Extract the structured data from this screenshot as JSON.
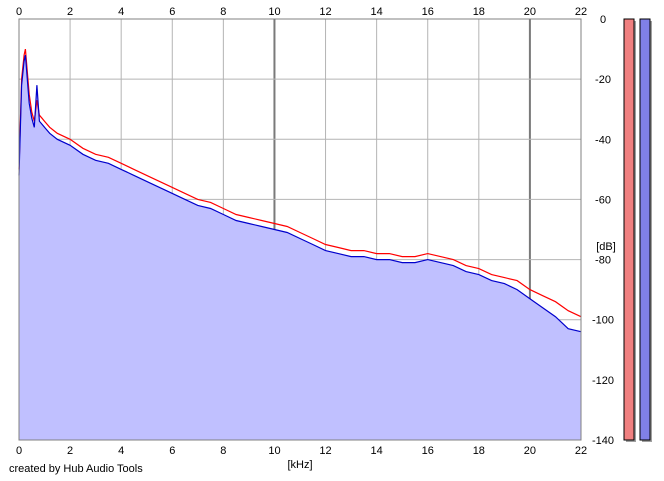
{
  "footer": {
    "credit": "created by Hub Audio Tools"
  },
  "chart_data": {
    "type": "line",
    "title": "",
    "xlabel": "[kHz]",
    "ylabel": "[dB]",
    "xlim": [
      0,
      22
    ],
    "ylim": [
      -140,
      0
    ],
    "x_ticks": [
      0,
      2,
      4,
      6,
      8,
      10,
      12,
      14,
      16,
      18,
      20,
      22
    ],
    "x_tick_labels": [
      "0",
      "2",
      "4",
      "6",
      "8",
      "10",
      "12",
      "14",
      "16",
      "18",
      "20",
      "22"
    ],
    "y_ticks": [
      0,
      -20,
      -40,
      -60,
      -80,
      -100,
      -120,
      -140
    ],
    "y_tick_labels": [
      "0",
      "-20",
      "-40",
      "-60",
      "-80",
      "-100",
      "-120",
      "-140"
    ],
    "x_ticks_top": true,
    "grid": true,
    "legend": "none",
    "series": [
      {
        "color": "#ff0000",
        "x": [
          0.0,
          0.1,
          0.2,
          0.25,
          0.4,
          0.5,
          0.6,
          0.7,
          0.8,
          0.9,
          1.0,
          1.2,
          1.5,
          2.0,
          2.5,
          3.0,
          3.5,
          4.0,
          4.5,
          5.0,
          5.5,
          6.0,
          6.5,
          7.0,
          7.5,
          8.0,
          8.5,
          9.0,
          9.5,
          10.0,
          10.5,
          11.0,
          11.5,
          12.0,
          12.5,
          13.0,
          13.5,
          14.0,
          14.5,
          15.0,
          15.5,
          16.0,
          16.5,
          17.0,
          17.5,
          18.0,
          18.5,
          19.0,
          19.5,
          20.0,
          20.5,
          21.0,
          21.5,
          22.0
        ],
        "values": [
          -50,
          -20,
          -12,
          -10,
          -25,
          -31,
          -34,
          -27,
          -32,
          -33,
          -34,
          -36,
          -38,
          -40,
          -43,
          -45,
          -46,
          -48,
          -50,
          -52,
          -54,
          -56,
          -58,
          -60,
          -61,
          -63,
          -65,
          -66,
          -67,
          -68,
          -69,
          -71,
          -73,
          -75,
          -76,
          -77,
          -77,
          -78,
          -78,
          -79,
          -79,
          -78,
          -79,
          -80,
          -82,
          -83,
          -85,
          -86,
          -87,
          -90,
          -92,
          -94,
          -97,
          -99
        ]
      },
      {
        "color": "#0000cc",
        "fill": "#c0c0ff",
        "x": [
          0.0,
          0.1,
          0.2,
          0.25,
          0.4,
          0.5,
          0.6,
          0.7,
          0.8,
          0.9,
          1.0,
          1.2,
          1.5,
          2.0,
          2.5,
          3.0,
          3.5,
          4.0,
          4.5,
          5.0,
          5.5,
          6.0,
          6.5,
          7.0,
          7.5,
          8.0,
          8.5,
          9.0,
          9.5,
          10.0,
          10.5,
          11.0,
          11.5,
          12.0,
          12.5,
          13.0,
          13.5,
          14.0,
          14.5,
          15.0,
          15.5,
          16.0,
          16.5,
          17.0,
          17.5,
          18.0,
          18.5,
          19.0,
          19.5,
          20.0,
          20.5,
          21.0,
          21.5,
          22.0
        ],
        "values": [
          -52,
          -22,
          -14,
          -12,
          -28,
          -33,
          -36,
          -22,
          -34,
          -35,
          -36,
          -38,
          -40,
          -42,
          -45,
          -47,
          -48,
          -50,
          -52,
          -54,
          -56,
          -58,
          -60,
          -62,
          -63,
          -65,
          -67,
          -68,
          -69,
          -70,
          -71,
          -73,
          -75,
          -77,
          -78,
          -79,
          -79,
          -80,
          -80,
          -81,
          -81,
          -80,
          -81,
          -82,
          -84,
          -85,
          -87,
          -88,
          -90,
          -93,
          -96,
          -99,
          -103,
          -104
        ]
      }
    ],
    "level_meters": [
      {
        "color": "#f08080",
        "level": 1.0
      },
      {
        "color": "#8080e8",
        "level": 1.0
      }
    ]
  }
}
